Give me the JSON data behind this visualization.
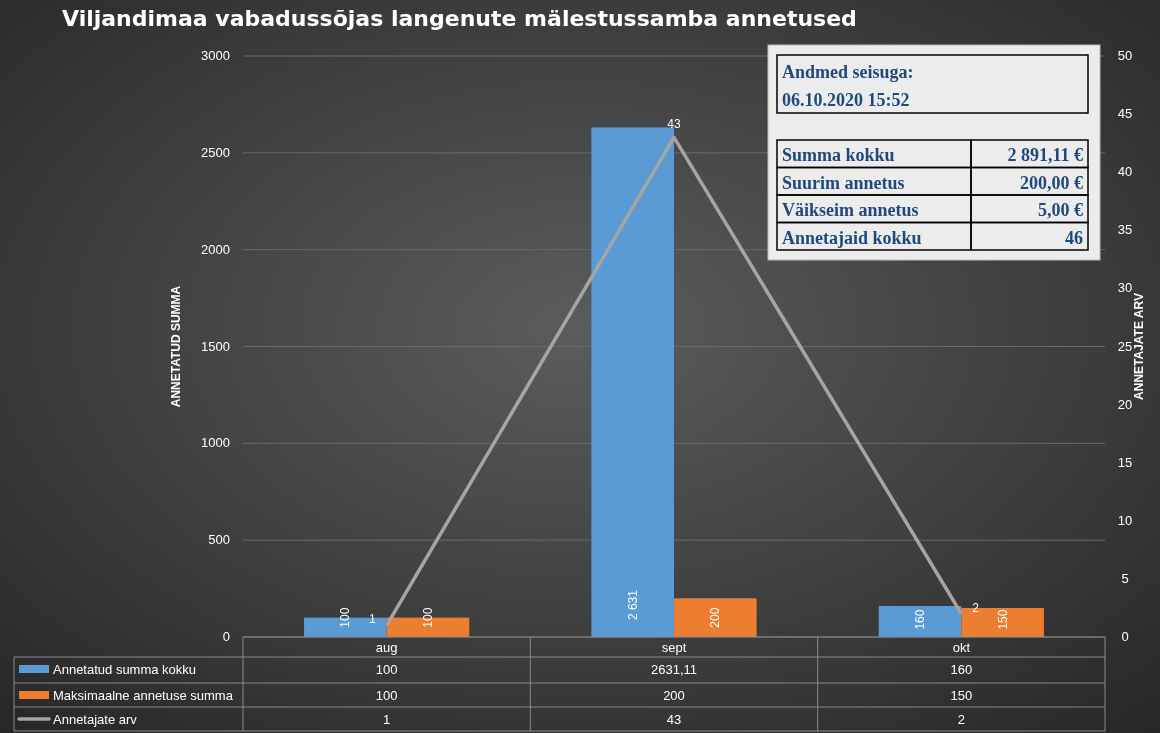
{
  "chart_data": {
    "type": "bar",
    "title": "Viljandimaa vabadussõjas langenute mälestussamba annetused",
    "ylabel": "ANNETATUD SUMMA",
    "y2label": "ANNETAJATE ARV",
    "categories": [
      "aug",
      "sept",
      "okt"
    ],
    "series": [
      {
        "name": "Annetatud summa kokku",
        "color": "#5b9bd5",
        "values": [
          100,
          2631.11,
          160
        ],
        "value_labels": [
          "100",
          "2631,11",
          "160"
        ]
      },
      {
        "name": "Maksimaalne annetuse summa",
        "color": "#ed7d31",
        "values": [
          100,
          200,
          150
        ],
        "value_labels": [
          "100",
          "200",
          "150"
        ]
      },
      {
        "name": "Annetajate arv",
        "type": "line",
        "axis": "y2",
        "color": "#a5a5a5",
        "values": [
          1,
          43,
          2
        ],
        "value_labels": [
          "1",
          "43",
          "2"
        ]
      }
    ],
    "ylim": [
      0,
      3000
    ],
    "yticks": [
      0,
      500,
      1000,
      1500,
      2000,
      2500,
      3000
    ],
    "y2lim": [
      0,
      50
    ],
    "y2ticks": [
      0,
      5,
      10,
      15,
      20,
      25,
      30,
      35,
      40,
      45,
      50
    ],
    "grid": "y",
    "legend": "bottom",
    "annotations": [
      "Andmed seisuga:",
      "06.10.2020 15:52",
      "Summa kokku",
      "2 891,11 €",
      "Suurim annetus",
      "200,00 €",
      "Väikseim annetus",
      "5,00 €",
      "Annetajaid kokku",
      "46",
      {
        "text": "100",
        "x": "aug",
        "y": 100
      },
      {
        "text": "2 631",
        "x": "sept",
        "y": 165
      },
      {
        "text": "160",
        "x": "okt",
        "y": 90
      },
      {
        "text": "100",
        "x": "aug",
        "y": 100
      },
      {
        "text": "200",
        "x": "sept",
        "y": 100
      },
      {
        "text": "150",
        "x": "okt",
        "y": 90
      }
    ]
  }
}
